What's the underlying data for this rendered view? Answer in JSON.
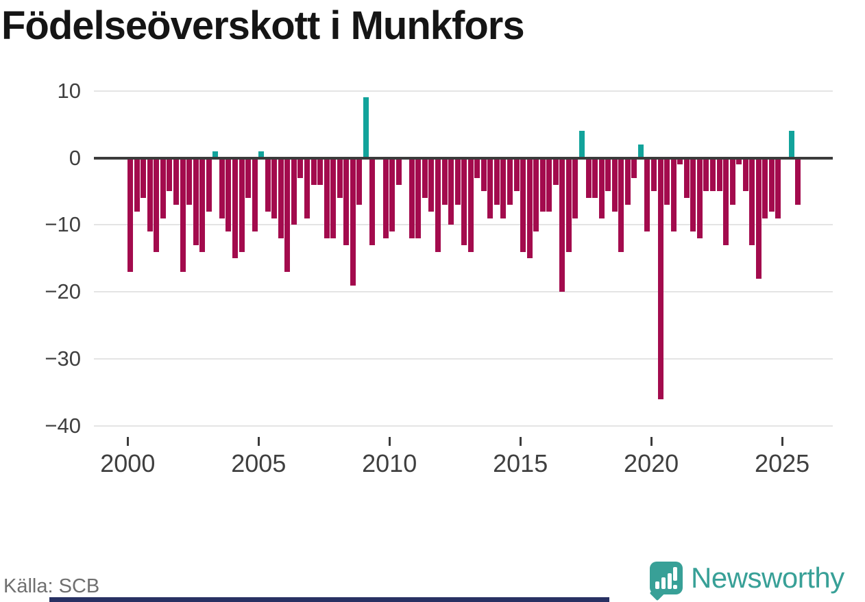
{
  "title": "Födelseöverskott i Munkfors",
  "source": "Källa: SCB",
  "brand": {
    "name": "Newsworthy",
    "color": "#38a097"
  },
  "chart_data": {
    "type": "bar",
    "title": "Födelseöverskott i Munkfors",
    "frequency": "quarterly",
    "x_range": "2000 Q1 – 2025 Q3",
    "ylim": [
      -40,
      10
    ],
    "grid": true,
    "legend": "none",
    "yticks": [
      10,
      0,
      -10,
      -20,
      -30,
      -40
    ],
    "ytick_labels": [
      "10",
      "0",
      "−10",
      "−20",
      "−30",
      "−40"
    ],
    "xticks": [
      2000,
      2005,
      2010,
      2015,
      2020,
      2025
    ],
    "xtick_labels": [
      "2000",
      "2005",
      "2010",
      "2015",
      "2020",
      "2025"
    ],
    "colors": {
      "positive": "#12a39b",
      "negative": "#a30b4d"
    },
    "series_by_year": [
      {
        "year": 2000,
        "values": [
          -17,
          -8,
          -6,
          -11
        ]
      },
      {
        "year": 2001,
        "values": [
          -14,
          -9,
          -5,
          -7
        ]
      },
      {
        "year": 2002,
        "values": [
          -17,
          -7,
          -13,
          -14
        ]
      },
      {
        "year": 2003,
        "values": [
          -8,
          1,
          -9,
          -11
        ]
      },
      {
        "year": 2004,
        "values": [
          -15,
          -14,
          -6,
          -11
        ]
      },
      {
        "year": 2005,
        "values": [
          1,
          -8,
          -9,
          -12
        ]
      },
      {
        "year": 2006,
        "values": [
          -17,
          -10,
          -3,
          -9
        ]
      },
      {
        "year": 2007,
        "values": [
          -4,
          -4,
          -12,
          -12
        ]
      },
      {
        "year": 2008,
        "values": [
          -6,
          -13,
          -19,
          -7
        ]
      },
      {
        "year": 2009,
        "values": [
          9,
          -13,
          0,
          -12
        ]
      },
      {
        "year": 2010,
        "values": [
          -11,
          -4,
          0,
          -12
        ]
      },
      {
        "year": 2011,
        "values": [
          -12,
          -6,
          -8,
          -14
        ]
      },
      {
        "year": 2012,
        "values": [
          -7,
          -10,
          -7,
          -13
        ]
      },
      {
        "year": 2013,
        "values": [
          -14,
          -3,
          -5,
          -9
        ]
      },
      {
        "year": 2014,
        "values": [
          -7,
          -9,
          -7,
          -5
        ]
      },
      {
        "year": 2015,
        "values": [
          -14,
          -15,
          -11,
          -8
        ]
      },
      {
        "year": 2016,
        "values": [
          -8,
          -4,
          -20,
          -14
        ]
      },
      {
        "year": 2017,
        "values": [
          -9,
          4,
          -6,
          -6
        ]
      },
      {
        "year": 2018,
        "values": [
          -9,
          -5,
          -8,
          -14
        ]
      },
      {
        "year": 2019,
        "values": [
          -7,
          -3,
          2,
          -11
        ]
      },
      {
        "year": 2020,
        "values": [
          -5,
          -36,
          -7,
          -11
        ]
      },
      {
        "year": 2021,
        "values": [
          -1,
          -6,
          -11,
          -12
        ]
      },
      {
        "year": 2022,
        "values": [
          -5,
          -5,
          -5,
          -13
        ]
      },
      {
        "year": 2023,
        "values": [
          -7,
          -1,
          -5,
          -13
        ]
      },
      {
        "year": 2024,
        "values": [
          -18,
          -9,
          -8,
          -9
        ]
      },
      {
        "year": 2025,
        "values": [
          0,
          4,
          -7
        ]
      }
    ]
  }
}
